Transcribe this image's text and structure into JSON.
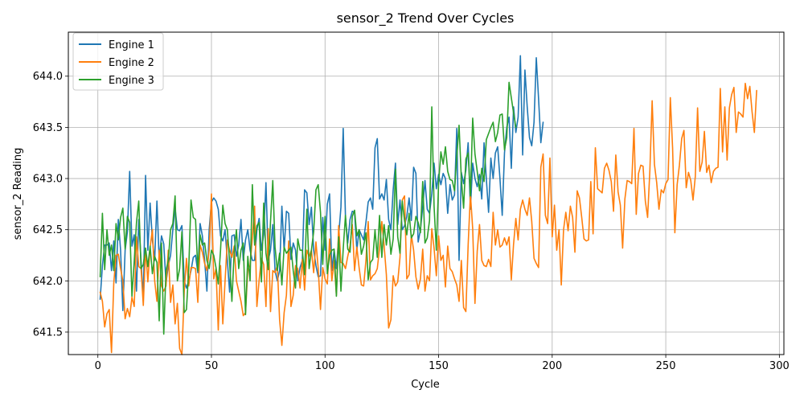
{
  "chart_data": {
    "type": "line",
    "title": "sensor_2 Trend Over Cycles",
    "xlabel": "Cycle",
    "ylabel": "sensor_2 Reading",
    "xlim": [
      -13,
      302
    ],
    "ylim": [
      641.28,
      644.43
    ],
    "x_ticks": [
      0,
      50,
      100,
      150,
      200,
      250,
      300
    ],
    "y_ticks": [
      641.5,
      642.0,
      642.5,
      643.0,
      643.5,
      644.0
    ],
    "y_tick_labels": [
      "641.5",
      "642.0",
      "642.5",
      "643.0",
      "643.5",
      "644.0"
    ],
    "grid": true,
    "legend_position": "top-left",
    "series": [
      {
        "name": "Engine 1",
        "color": "#1f77b4",
        "x_start": 1,
        "values": [
          641.82,
          642.15,
          642.35,
          642.35,
          642.37,
          642.1,
          642.39,
          641.98,
          642.6,
          642.3,
          641.71,
          642.3,
          642.48,
          643.07,
          642.34,
          642.45,
          641.9,
          642.6,
          642.2,
          641.82,
          643.03,
          642.3,
          642.76,
          642.4,
          642.2,
          642.78,
          642.2,
          642.44,
          642.36,
          641.98,
          642.15,
          642.25,
          642.5,
          642.71,
          642.5,
          642.49,
          642.54,
          642.0,
          641.93,
          642.0,
          642.1,
          642.23,
          642.25,
          642.08,
          642.56,
          642.44,
          642.2,
          641.9,
          642.5,
          642.77,
          642.81,
          642.78,
          642.7,
          642.44,
          642.39,
          642.5,
          642.2,
          641.89,
          642.44,
          642.45,
          642.24,
          642.35,
          642.6,
          642.2,
          642.4,
          642.5,
          642.3,
          642.2,
          642.2,
          642.5,
          642.61,
          642.3,
          642.45,
          642.96,
          642.2,
          642.3,
          642.55,
          642.1,
          642.0,
          642.1,
          642.73,
          642.3,
          642.68,
          642.66,
          642.21,
          642.37,
          642.3,
          642.0,
          642.13,
          642.2,
          642.89,
          642.86,
          642.55,
          642.72,
          642.3,
          642.15,
          642.04,
          642.05,
          642.62,
          642.3,
          642.75,
          642.85,
          642.1,
          642.3,
          642.12,
          642.44,
          642.72,
          643.49,
          642.62,
          642.37,
          642.6,
          642.68,
          642.67,
          642.3,
          642.5,
          642.45,
          642.4,
          642.57,
          642.77,
          642.81,
          642.7,
          643.3,
          643.39,
          642.8,
          642.85,
          642.79,
          642.99,
          642.6,
          642.5,
          642.89,
          643.15,
          642.55,
          642.79,
          642.5,
          642.54,
          642.63,
          642.81,
          642.59,
          643.11,
          643.05,
          642.38,
          642.5,
          642.72,
          642.98,
          642.7,
          642.66,
          642.85,
          643.15,
          642.9,
          643.04,
          642.94,
          643.05,
          643.0,
          642.66,
          642.94,
          642.79,
          642.84,
          643.49,
          642.2,
          643.06,
          642.95,
          643.08,
          643.35,
          642.7,
          643.15,
          643.0,
          642.92,
          643.04,
          642.8,
          643.35,
          643.0,
          642.67,
          643.2,
          643.0,
          643.25,
          643.31,
          643.0,
          642.64,
          643.25,
          643.5,
          643.6,
          643.1,
          643.7,
          643.45,
          643.6,
          644.2,
          643.23,
          644.06,
          643.7,
          643.4,
          643.32,
          643.55,
          644.18,
          643.78,
          643.35,
          643.55
        ]
      },
      {
        "name": "Engine 2",
        "color": "#ff7f0e",
        "x_start": 1,
        "values": [
          641.89,
          641.8,
          641.55,
          641.68,
          641.72,
          641.3,
          641.98,
          642.25,
          642.26,
          642.12,
          642.0,
          641.63,
          641.73,
          641.65,
          641.84,
          641.75,
          642.43,
          642.14,
          642.12,
          641.76,
          642.32,
          641.99,
          642.33,
          642.5,
          642.0,
          641.8,
          642.3,
          641.95,
          641.9,
          641.95,
          642.3,
          641.79,
          641.96,
          641.58,
          641.78,
          641.34,
          641.28,
          641.89,
          642.22,
          641.95,
          642.13,
          642.13,
          642.12,
          641.79,
          642.35,
          642.28,
          642.17,
          642.1,
          642.3,
          642.85,
          642.02,
          642.12,
          641.52,
          642.15,
          641.58,
          642.0,
          642.4,
          642.3,
          642.23,
          642.34,
          642.0,
          641.9,
          641.8,
          641.66,
          641.69,
          642.11,
          642.15,
          642.42,
          642.73,
          641.75,
          642.01,
          642.22,
          642.16,
          641.75,
          642.51,
          641.7,
          642.1,
          642.08,
          642.15,
          641.62,
          641.37,
          641.69,
          641.86,
          642.39,
          641.75,
          641.86,
          642.15,
          642.12,
          641.93,
          642.21,
          641.91,
          642.3,
          642.24,
          642.3,
          642.08,
          642.38,
          642.12,
          641.72,
          642.13,
          642.02,
          641.97,
          642.41,
          642.0,
          642.2,
          641.86,
          642.54,
          642.18,
          642.17,
          642.12,
          642.24,
          642.34,
          642.55,
          642.1,
          642.33,
          642.13,
          641.96,
          641.95,
          642.2,
          642.58,
          642.01,
          642.05,
          642.07,
          642.12,
          642.32,
          642.58,
          642.35,
          642.06,
          641.54,
          641.62,
          642.05,
          641.95,
          641.99,
          642.23,
          642.79,
          642.83,
          642.02,
          642.06,
          642.45,
          642.3,
          642.04,
          641.92,
          642.02,
          642.31,
          641.9,
          642.05,
          642.0,
          642.51,
          642.32,
          642.05,
          642.44,
          642.2,
          642.25,
          641.94,
          642.34,
          642.12,
          642.09,
          642.02,
          641.96,
          641.8,
          642.2,
          641.74,
          641.7,
          642.35,
          642.85,
          642.51,
          641.78,
          642.29,
          642.55,
          642.2,
          642.15,
          642.14,
          642.21,
          642.14,
          642.67,
          642.35,
          642.5,
          642.33,
          642.35,
          642.42,
          642.35,
          642.43,
          642.01,
          642.36,
          642.61,
          642.4,
          642.7,
          642.79,
          642.7,
          642.64,
          642.81,
          642.58,
          642.22,
          642.17,
          642.13,
          643.11,
          643.24,
          642.64,
          642.56,
          643.2,
          642.43,
          642.74,
          642.3,
          642.5,
          641.96,
          642.5,
          642.67,
          642.49,
          642.73,
          642.62,
          642.28,
          642.88,
          642.81,
          642.62,
          642.41,
          642.39,
          642.4,
          642.97,
          642.46,
          643.3,
          642.9,
          642.88,
          642.86,
          643.1,
          643.15,
          643.08,
          642.97,
          642.68,
          643.23,
          642.87,
          642.74,
          642.32,
          642.8,
          642.98,
          642.97,
          642.95,
          643.49,
          642.65,
          643.05,
          643.13,
          643.12,
          642.78,
          642.62,
          643.08,
          643.76,
          643.14,
          642.96,
          642.7,
          642.89,
          642.86,
          642.95,
          642.99,
          643.79,
          643.3,
          642.47,
          642.94,
          643.13,
          643.39,
          643.47,
          642.91,
          643.06,
          642.98,
          642.79,
          643.02,
          643.69,
          643.07,
          643.16,
          643.46,
          643.06,
          643.13,
          642.96,
          643.07,
          643.1,
          643.11,
          643.88,
          643.26,
          643.7,
          643.18,
          643.69,
          643.82,
          643.89,
          643.45,
          643.65,
          643.63,
          643.6,
          643.93,
          643.78,
          643.9,
          643.65,
          643.45,
          643.86
        ]
      },
      {
        "name": "Engine 3",
        "color": "#2ca02c",
        "x_start": 1,
        "values": [
          642.04,
          642.66,
          642.11,
          642.5,
          642.25,
          642.35,
          642.1,
          642.56,
          642.4,
          642.62,
          642.71,
          642.31,
          642.63,
          642.57,
          641.85,
          642.19,
          642.57,
          642.78,
          642.12,
          642.16,
          642.32,
          642.14,
          642.34,
          642.07,
          642.24,
          642.18,
          641.61,
          642.37,
          641.48,
          642.1,
          642.2,
          642.5,
          642.56,
          642.83,
          642.0,
          642.12,
          642.48,
          641.69,
          641.72,
          642.12,
          642.79,
          642.62,
          642.6,
          642.1,
          642.45,
          642.35,
          642.37,
          642.2,
          642.12,
          642.3,
          642.25,
          642.13,
          641.97,
          642.3,
          642.74,
          642.56,
          642.5,
          642.18,
          641.8,
          642.28,
          642.5,
          642.12,
          642.3,
          642.37,
          641.67,
          642.24,
          642.0,
          642.94,
          642.35,
          642.54,
          642.57,
          641.99,
          642.76,
          642.27,
          642.11,
          642.58,
          642.98,
          642.33,
          642.1,
          642.27,
          641.96,
          642.33,
          642.27,
          642.3,
          642.33,
          642.1,
          641.93,
          642.41,
          642.3,
          642.3,
          642.06,
          642.7,
          642.12,
          642.3,
          642.48,
          642.89,
          642.94,
          642.67,
          642.16,
          642.63,
          642.07,
          642.25,
          642.3,
          642.31,
          641.85,
          642.43,
          641.9,
          642.31,
          642.64,
          642.31,
          642.28,
          642.63,
          642.69,
          642.44,
          642.5,
          642.26,
          642.34,
          642.47,
          642.01,
          642.18,
          642.21,
          642.5,
          642.23,
          642.64,
          642.23,
          642.55,
          642.35,
          642.54,
          642.26,
          642.41,
          643.09,
          642.43,
          642.27,
          642.78,
          642.59,
          642.45,
          642.66,
          642.42,
          642.46,
          642.63,
          642.57,
          642.47,
          642.97,
          642.37,
          642.42,
          642.59,
          643.7,
          642.73,
          642.3,
          642.96,
          643.26,
          643.14,
          643.31,
          643.07,
          642.99,
          642.98,
          642.88,
          643.21,
          643.52,
          643.0,
          642.71,
          643.19,
          643.25,
          642.83,
          643.59,
          643.24,
          643.07,
          642.88,
          643.1,
          642.97,
          643.38,
          643.44,
          643.5,
          643.55,
          643.36,
          643.45,
          643.62,
          643.63,
          643.28,
          643.4,
          643.94,
          643.79,
          643.64,
          643.5
        ]
      }
    ]
  }
}
